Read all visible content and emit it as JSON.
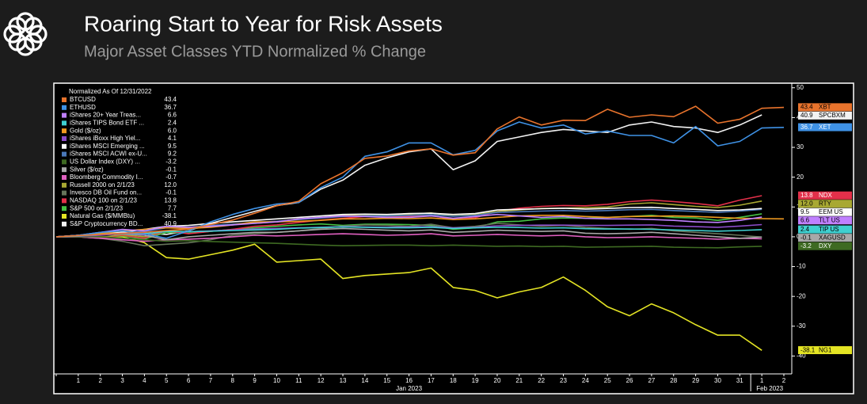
{
  "header": {
    "title": "Roaring Start to Year for Risk Assets",
    "subtitle": "Major Asset Classes YTD Normalized % Change"
  },
  "chart_data": {
    "type": "line",
    "legend_title": "Normalized As Of 12/31/2022",
    "categories": [
      null,
      "1",
      "2",
      "3",
      "4",
      "5",
      "6",
      "7",
      "8",
      "9",
      "10",
      "11",
      "12",
      "13",
      "14",
      "15",
      "16",
      "17",
      "18",
      "19",
      "20",
      "21",
      "22",
      "23",
      "24",
      "25",
      "26",
      "27",
      "28",
      "29",
      "30",
      "31",
      "1",
      "2"
    ],
    "x_groups": [
      {
        "label": "Jan 2023"
      },
      {
        "label": "Feb 2023"
      }
    ],
    "ylim": [
      -46,
      51
    ],
    "yticks": [
      50,
      40,
      30,
      20,
      10,
      0,
      -10,
      -20,
      -30,
      -40
    ],
    "grid": false,
    "legend": "upper left",
    "series": [
      {
        "name": "BTCUSD",
        "value_label": "43.4",
        "ticker": "XBT",
        "color": "#e8732c",
        "values": [
          0,
          0.4,
          0.8,
          1.2,
          1.5,
          2.1,
          2.6,
          4.1,
          5.6,
          7.9,
          10.4,
          11.9,
          17.8,
          21.5,
          26.3,
          27.1,
          28.8,
          29.5,
          27.4,
          28.2,
          36.2,
          40.2,
          37.5,
          39.1,
          39.0,
          42.8,
          40.1,
          40.9,
          40.3,
          43.8,
          38.1,
          39.4,
          43.1,
          43.4
        ]
      },
      {
        "name": "ETHUSD",
        "value_label": "36.7",
        "ticker": "XET",
        "color": "#3f92e6",
        "values": [
          0,
          0.5,
          1.5,
          2,
          1,
          -0.5,
          2,
          5,
          7.5,
          9.5,
          11,
          11.5,
          16.5,
          20,
          27,
          28.5,
          31.5,
          31.5,
          27.5,
          29,
          35.5,
          38.5,
          36.5,
          37.5,
          34.5,
          35.5,
          34,
          34,
          31.5,
          37,
          30.5,
          32,
          36.5,
          36.7
        ]
      },
      {
        "name": "iShares 20+ Year Treas...",
        "value_label": "6.6",
        "ticker": "TLT US",
        "color": "#c080ff",
        "values": [
          0,
          0.5,
          1.5,
          2.5,
          2,
          3.5,
          3.2,
          3.5,
          4,
          4.5,
          5,
          6,
          6.5,
          7,
          6.8,
          6.5,
          6.5,
          7,
          6.2,
          6.8,
          7.5,
          7,
          6.5,
          6.8,
          6.2,
          6,
          6,
          5.8,
          5.5,
          5,
          4.8,
          5.5,
          6.6,
          null
        ]
      },
      {
        "name": "iShares TIPS Bond ETF ...",
        "value_label": "2.4",
        "ticker": "TIP US",
        "color": "#3fd0d0",
        "values": [
          0,
          0.3,
          0.8,
          1.2,
          1,
          1.8,
          1.7,
          1.9,
          2.1,
          2.3,
          2.5,
          2.9,
          3.1,
          3.3,
          3.2,
          3,
          3,
          3.2,
          2.8,
          3,
          3.2,
          3.1,
          2.9,
          3,
          2.7,
          2.6,
          2.6,
          2.5,
          2.3,
          2.1,
          1.9,
          2.1,
          2.4,
          null
        ]
      },
      {
        "name": "Gold ($/oz)",
        "value_label": "6.0",
        "color": "#f09a20",
        "values": [
          0,
          0.5,
          1,
          2,
          2.5,
          3,
          2.8,
          3.2,
          4,
          5,
          5,
          5.2,
          5.5,
          6,
          6,
          6.2,
          6.1,
          6.3,
          5.8,
          6,
          6.5,
          7,
          7.2,
          7.2,
          6.8,
          6.5,
          6.8,
          6.9,
          7,
          6.8,
          6.5,
          6.2,
          6.1,
          6.0
        ]
      },
      {
        "name": "iShares iBoxx High Yiel...",
        "value_label": "4.1",
        "color": "#8a4cc8",
        "values": [
          0,
          0.2,
          0.5,
          1,
          0.8,
          1.8,
          1.7,
          2,
          2.3,
          2.6,
          2.8,
          3,
          3.2,
          3.4,
          3.3,
          3.2,
          3.3,
          3.4,
          3,
          3.2,
          3.7,
          3.8,
          3.9,
          3.9,
          3.8,
          3.8,
          3.9,
          4,
          3.6,
          3.4,
          3.2,
          3.6,
          4.1,
          null
        ]
      },
      {
        "name": "iShares MSCI Emerging ...",
        "value_label": "9.5",
        "ticker": "EEM US",
        "color": "#ffffff",
        "values": [
          0,
          0.5,
          0.8,
          1.5,
          2.5,
          3.5,
          3.8,
          4.5,
          5,
          5.5,
          6,
          6.5,
          7,
          7.5,
          7.6,
          7.5,
          7.8,
          7.9,
          7.5,
          7.8,
          9,
          9.2,
          9.4,
          9.6,
          9.3,
          9.5,
          9.8,
          9.9,
          9.5,
          9.2,
          8.8,
          9.0,
          9.5,
          null
        ]
      },
      {
        "name": "iShares MSCI ACWI ex-U...",
        "value_label": "9.2",
        "color": "#4a78b8",
        "values": [
          0,
          0.3,
          0.6,
          1.2,
          1.8,
          3,
          3.2,
          3.8,
          4.2,
          4.8,
          5.2,
          5.8,
          6.3,
          6.8,
          7,
          7,
          7.2,
          7.4,
          6.9,
          7.2,
          8.2,
          8.4,
          8.6,
          8.8,
          8.6,
          8.8,
          9.1,
          9.2,
          8.8,
          8.5,
          8.2,
          8.6,
          9.2,
          null
        ]
      },
      {
        "name": "US Dollar Index (DXY) ...",
        "value_label": "-3.2",
        "ticker": "DXY",
        "color": "#3e6a22",
        "values": [
          0,
          0,
          0,
          -0.5,
          -1,
          -1.5,
          -1.3,
          -1.6,
          -1.8,
          -2,
          -2.2,
          -2.5,
          -2.8,
          -3,
          -2.9,
          -2.8,
          -2.8,
          -3,
          -2.8,
          -3,
          -3.2,
          -3.1,
          -3.3,
          -3.2,
          -3.5,
          -3.4,
          -3.3,
          -3.2,
          -3.5,
          -3.6,
          -3.7,
          -3.4,
          -3.2,
          null
        ]
      },
      {
        "name": "Silver ($/oz)",
        "value_label": "-0.1",
        "ticker": "XAGUSD",
        "color": "#a8a8a8",
        "values": [
          0,
          0.5,
          1,
          1,
          0.5,
          -1,
          0,
          0.5,
          1,
          1.5,
          1.5,
          2,
          2.5,
          2.8,
          2.5,
          2.2,
          2,
          2.3,
          1.5,
          1.8,
          2.2,
          2,
          1.8,
          2,
          1.2,
          1,
          1.2,
          1.5,
          1,
          0.5,
          0,
          -0.5,
          -0.1,
          null
        ]
      },
      {
        "name": "Bloomberg Commodity I...",
        "value_label": "-0.7",
        "color": "#e060c0",
        "values": [
          0,
          0,
          -0.5,
          -1,
          -1.5,
          -1,
          -0.8,
          -0.5,
          0,
          0.5,
          0.3,
          0.5,
          0.8,
          1,
          0.8,
          0.5,
          0.7,
          1,
          0.3,
          0.5,
          0.8,
          0.5,
          0.3,
          0.5,
          0,
          -0.3,
          -0.2,
          0,
          -0.3,
          -0.5,
          -0.8,
          -0.5,
          -0.7,
          null
        ]
      },
      {
        "name": "Russell 2000 on 2/1/23",
        "value_label": "12.0",
        "ticker": "RTY",
        "color": "#a8a832",
        "values": [
          0,
          0,
          -0.3,
          0.8,
          0,
          2,
          2.5,
          3.5,
          4.2,
          4.5,
          5,
          6,
          6.5,
          7.2,
          7.5,
          7.4,
          7.6,
          8,
          7,
          7.5,
          8.5,
          9,
          9.5,
          9.6,
          9.8,
          10,
          11,
          11.4,
          10.8,
          10.2,
          9.8,
          10.6,
          12.0,
          null
        ]
      },
      {
        "name": "Invesco DB Oil Fund on...",
        "value_label": "-0.1",
        "color": "#66755a",
        "values": [
          0,
          0,
          -0.5,
          -1.5,
          -3,
          -2.5,
          -2,
          -1,
          0.5,
          1,
          1.5,
          2,
          2.8,
          3.5,
          4,
          3.8,
          3.5,
          4.2,
          3,
          3.5,
          4.5,
          4,
          3.5,
          3.8,
          3.2,
          2.8,
          2.5,
          2.8,
          2,
          1.5,
          1,
          0.5,
          -0.1,
          null
        ]
      },
      {
        "name": "NASDAQ 100 on 2/1/23",
        "value_label": "13.8",
        "ticker": "NDX",
        "color": "#e3304a",
        "values": [
          0,
          0,
          -0.5,
          0.5,
          -0.5,
          2,
          1,
          1.8,
          2.5,
          3.5,
          4,
          4.8,
          5.6,
          6.2,
          6.8,
          6.8,
          6.8,
          7.2,
          5.8,
          6.4,
          8.5,
          9.6,
          10.2,
          10.5,
          10.4,
          10.9,
          11.8,
          12.3,
          11.8,
          11.2,
          10.4,
          12.3,
          13.8,
          null
        ]
      },
      {
        "name": "S&P 500 on 2/1/23",
        "value_label": "7.7",
        "color": "#44c044",
        "values": [
          0,
          0,
          -0.4,
          0.3,
          -0.8,
          1.5,
          1.2,
          1.8,
          2.5,
          3,
          3.5,
          4,
          4.3,
          3.8,
          4.2,
          4.2,
          4.1,
          3.8,
          2.5,
          3,
          5,
          5.2,
          6,
          6.3,
          6.2,
          6.5,
          6.8,
          7.2,
          6.5,
          6.3,
          5.5,
          6.5,
          7.7,
          null
        ]
      },
      {
        "name": "Natural Gas ($/MMBtu)",
        "value_label": "-38.1",
        "ticker": "NG1",
        "color": "#e4e424",
        "values": [
          0,
          0,
          0,
          0,
          -2,
          -7,
          -7.5,
          -6,
          -4.5,
          -2.5,
          -8.5,
          -8,
          -7.5,
          -14,
          -13,
          -12.5,
          -12,
          -10.5,
          -17,
          -18,
          -20.5,
          -18.5,
          -17,
          -13.5,
          -18,
          -23.5,
          -26.5,
          -22.5,
          -25.5,
          -29.5,
          -33,
          -33,
          -38.1,
          null
        ]
      },
      {
        "name": "S&P Cryptocurrency BD...",
        "value_label": "40.9",
        "ticker": "SPCBXM",
        "color": "#f2f2f2",
        "values": [
          0,
          0.3,
          1,
          1.5,
          1.2,
          0.8,
          2,
          4.5,
          6.5,
          8.5,
          10.5,
          11.5,
          16,
          19,
          24,
          26.5,
          28.5,
          29.5,
          22.5,
          25.5,
          32,
          33.5,
          35,
          36,
          35.5,
          35,
          37.5,
          38.5,
          37,
          36.5,
          35,
          37.5,
          40.9,
          null
        ]
      }
    ]
  }
}
